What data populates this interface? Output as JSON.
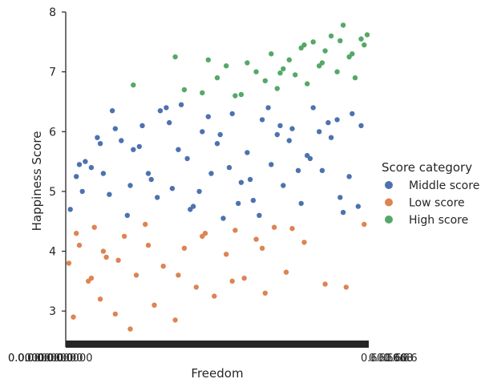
{
  "chart_data": {
    "type": "scatter",
    "title": "",
    "xlabel": "Freedom",
    "ylabel": "Happiness Score",
    "ylim": [
      2.4,
      8.0
    ],
    "yticks": [
      3,
      4,
      5,
      6,
      7,
      8
    ],
    "x_tick_labels_overlapping": true,
    "x_tick_label_left": "0.0000",
    "x_tick_label_right": "0.668",
    "legend": {
      "title": "Score category",
      "placement": "right",
      "entries": [
        {
          "name": "Middle score",
          "color": "#4c72b0"
        },
        {
          "name": "Low score",
          "color": "#dd8452"
        },
        {
          "name": "High score",
          "color": "#55a868"
        }
      ]
    },
    "series": [
      {
        "name": "Middle score",
        "color": "#4c72b0",
        "y_range": [
          4.5,
          6.5
        ],
        "x": [
          0.01,
          0.03,
          0.05,
          0.08,
          0.1,
          0.12,
          0.15,
          0.18,
          0.2,
          0.22,
          0.25,
          0.28,
          0.3,
          0.33,
          0.35,
          0.38,
          0.4,
          0.42,
          0.45,
          0.48,
          0.5,
          0.52,
          0.55,
          0.58,
          0.6,
          0.62,
          0.65,
          0.68,
          0.7,
          0.72,
          0.75,
          0.78,
          0.8,
          0.82,
          0.85,
          0.88,
          0.9,
          0.92,
          0.95,
          0.98,
          0.06,
          0.14,
          0.24,
          0.34,
          0.44,
          0.54,
          0.64,
          0.74,
          0.84,
          0.94,
          0.11,
          0.21,
          0.31,
          0.41,
          0.51,
          0.61,
          0.71,
          0.81,
          0.91,
          0.04,
          0.16,
          0.27,
          0.37,
          0.47,
          0.57,
          0.67,
          0.77,
          0.87,
          0.97
        ],
        "y": [
          4.7,
          5.25,
          5.0,
          5.4,
          5.9,
          5.3,
          6.35,
          5.85,
          4.6,
          5.7,
          6.1,
          5.2,
          4.9,
          6.4,
          5.05,
          6.45,
          5.55,
          4.75,
          6.0,
          5.3,
          5.8,
          4.55,
          6.3,
          5.15,
          5.65,
          4.85,
          6.2,
          5.45,
          5.95,
          5.1,
          6.05,
          4.8,
          5.6,
          6.4,
          5.35,
          5.9,
          6.2,
          4.65,
          6.3,
          6.1,
          5.5,
          4.95,
          5.75,
          6.15,
          5.0,
          5.4,
          4.6,
          5.85,
          6.0,
          5.25,
          5.8,
          5.1,
          6.35,
          4.7,
          5.95,
          5.2,
          6.1,
          5.55,
          4.9,
          5.45,
          6.05,
          5.3,
          5.7,
          6.25,
          4.8,
          6.4,
          5.35,
          6.15,
          4.75
        ]
      },
      {
        "name": "Low score",
        "color": "#dd8452",
        "y_range": [
          2.7,
          4.5
        ],
        "x": [
          0.005,
          0.02,
          0.04,
          0.07,
          0.09,
          0.11,
          0.13,
          0.16,
          0.19,
          0.21,
          0.23,
          0.26,
          0.29,
          0.32,
          0.36,
          0.39,
          0.43,
          0.46,
          0.49,
          0.53,
          0.56,
          0.59,
          0.63,
          0.66,
          0.69,
          0.73,
          0.79,
          0.86,
          0.93,
          0.99,
          0.03,
          0.08,
          0.12,
          0.17,
          0.27,
          0.37,
          0.45,
          0.55,
          0.65,
          0.75
        ],
        "y": [
          3.8,
          2.9,
          4.1,
          3.5,
          4.4,
          3.2,
          3.9,
          2.95,
          4.25,
          2.7,
          3.6,
          4.45,
          3.1,
          3.75,
          2.85,
          4.05,
          3.4,
          4.3,
          3.25,
          3.95,
          4.35,
          3.55,
          4.2,
          3.3,
          4.4,
          3.65,
          4.15,
          3.45,
          3.4,
          4.45,
          4.3,
          3.55,
          4.0,
          3.85,
          4.1,
          3.6,
          4.25,
          3.5,
          4.05,
          4.38
        ]
      },
      {
        "name": "High score",
        "color": "#55a868",
        "y_range": [
          6.5,
          7.8
        ],
        "x": [
          0.22,
          0.36,
          0.39,
          0.47,
          0.5,
          0.53,
          0.56,
          0.6,
          0.63,
          0.66,
          0.68,
          0.7,
          0.72,
          0.74,
          0.76,
          0.78,
          0.8,
          0.82,
          0.84,
          0.86,
          0.88,
          0.9,
          0.92,
          0.94,
          0.96,
          0.98,
          1.0,
          0.45,
          0.58,
          0.71,
          0.79,
          0.85,
          0.91,
          0.95,
          0.99
        ],
        "y": [
          6.78,
          7.25,
          6.7,
          7.2,
          6.9,
          7.1,
          6.6,
          7.15,
          7.0,
          6.85,
          7.3,
          6.72,
          7.05,
          7.2,
          6.95,
          7.4,
          6.8,
          7.5,
          7.1,
          7.35,
          7.6,
          7.0,
          7.78,
          7.25,
          6.9,
          7.55,
          7.62,
          6.65,
          6.62,
          6.98,
          7.45,
          7.15,
          7.52,
          7.3,
          7.45
        ]
      }
    ]
  }
}
